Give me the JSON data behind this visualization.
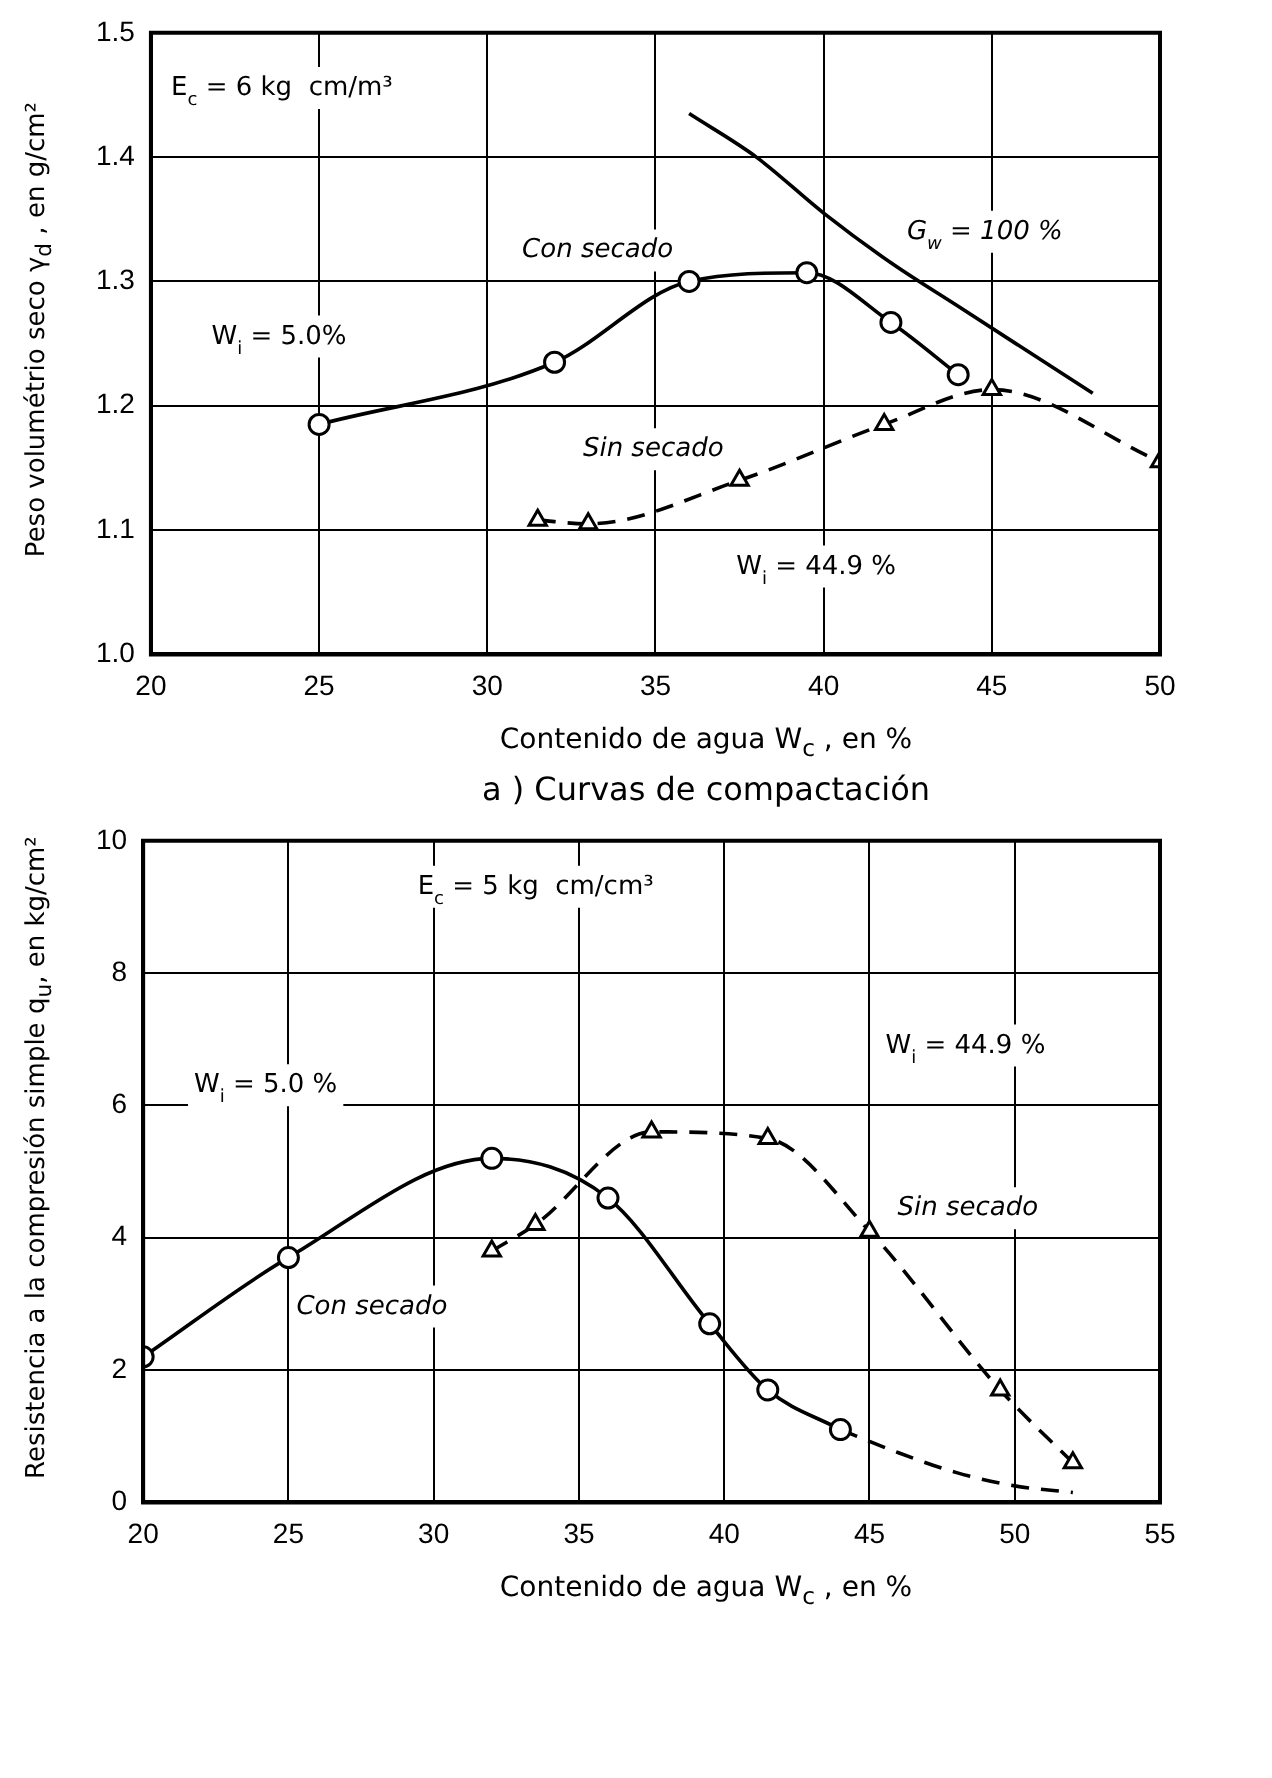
{
  "chart_data": [
    {
      "type": "line",
      "title": "a ) Curvas de compactación",
      "xlabel": "Contenido de agua W$_{c}$ , en %",
      "ylabel": "Peso volumétrio seco γ$_{d}$ , en g/cm²",
      "xlim": [
        20,
        50
      ],
      "xticks": [
        20,
        25,
        30,
        35,
        40,
        45,
        50
      ],
      "ylim": [
        1.0,
        1.5
      ],
      "yticks": [
        {
          "value": 1.0,
          "label": "1.0"
        },
        1.1,
        1.2,
        1.3,
        1.4,
        1.5
      ],
      "grid": true,
      "legend": false,
      "annotations": [
        "E$_{c}$ = 6 kg  cm/m³",
        "W$_{i}$ = 5.0%",
        "W$_{i}$ = 44.9 %"
      ],
      "series": [
        {
          "name": "Con secado",
          "color": "#000000",
          "marker": "circle",
          "line_style": "solid",
          "x": [
            25,
            32,
            36,
            39.5,
            42,
            44
          ],
          "values": [
            1.185,
            1.235,
            1.3,
            1.307,
            1.267,
            1.225
          ]
        },
        {
          "name": "Sin secado",
          "color": "#000000",
          "marker": "triangle",
          "line_style": "dashed",
          "x": [
            31.5,
            33,
            37.5,
            41.8,
            45,
            50
          ],
          "values": [
            1.108,
            1.105,
            1.14,
            1.185,
            1.213,
            1.155
          ]
        },
        {
          "name": "G$_{w}$ = 100 %",
          "color": "#000000",
          "marker": "none",
          "line_style": "solid",
          "x": [
            36,
            38,
            40,
            42,
            44,
            46,
            48
          ],
          "values": [
            1.435,
            1.4,
            1.355,
            1.315,
            1.28,
            1.245,
            1.21
          ]
        }
      ]
    },
    {
      "type": "line",
      "xlabel": "Contenido de agua W$_{c}$ , en %",
      "ylabel": "Resistencia a la compresión simple q$_{u}$, en kg/cm²",
      "xlim": [
        20,
        55
      ],
      "xticks": [
        20,
        25,
        30,
        35,
        40,
        45,
        50,
        55
      ],
      "ylim": [
        0,
        10
      ],
      "yticks": [
        0,
        2,
        4,
        6,
        8,
        10
      ],
      "grid": true,
      "legend": false,
      "annotations": [
        "E$_{c}$ = 5 kg  cm/cm³",
        "W$_{i}$ = 5.0 %",
        "W$_{i}$ = 44.9 %"
      ],
      "series": [
        {
          "name": "Con secado",
          "color": "#000000",
          "marker": "circle",
          "line_style": "solid",
          "x": [
            20,
            25,
            32,
            36,
            39.5,
            41.5,
            44
          ],
          "values": [
            2.2,
            3.7,
            5.2,
            4.6,
            2.7,
            1.7,
            1.1
          ]
        },
        {
          "color": "#000000",
          "marker": "none",
          "line_style": "dashed",
          "x": [
            44,
            46,
            48,
            50,
            52
          ],
          "values": [
            1.1,
            0.75,
            0.45,
            0.25,
            0.15
          ]
        },
        {
          "name": "Sin secado",
          "color": "#000000",
          "marker": "triangle",
          "line_style": "dashed",
          "x": [
            32,
            33.5,
            37.5,
            41.5,
            45,
            49.5,
            52
          ],
          "values": [
            3.8,
            4.2,
            5.6,
            5.5,
            4.1,
            1.7,
            0.6
          ]
        }
      ]
    }
  ]
}
